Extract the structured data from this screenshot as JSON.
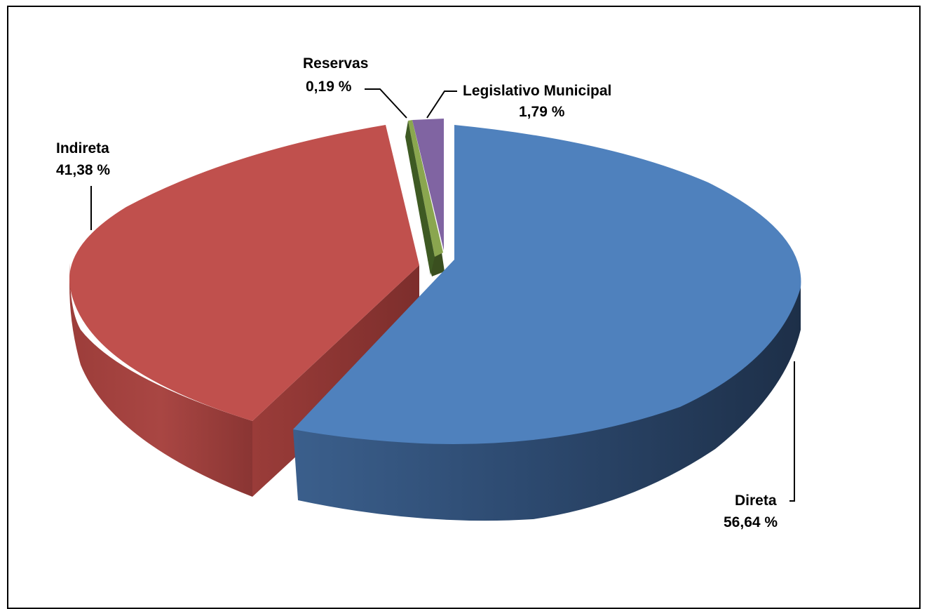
{
  "chart_data": {
    "type": "pie",
    "style": "3d-exploded",
    "categories": [
      "Direta",
      "Indireta",
      "Reservas",
      "Legislativo Municipal"
    ],
    "values": [
      56.64,
      41.38,
      0.19,
      1.79
    ],
    "unit": "%",
    "series": [
      {
        "name": "Direta",
        "value": 56.64,
        "label": "Direta",
        "value_label": "56,64 %",
        "color": "#4F81BD"
      },
      {
        "name": "Indireta",
        "value": 41.38,
        "label": "Indireta",
        "value_label": "41,38 %",
        "color": "#C0504D"
      },
      {
        "name": "Reservas",
        "value": 0.19,
        "label": "Reservas",
        "value_label": "0,19 %",
        "color": "#9BBB59"
      },
      {
        "name": "Legislativo Municipal",
        "value": 1.79,
        "label": "Legislativo Municipal",
        "value_label": "1,79 %",
        "color": "#8064A2"
      }
    ],
    "title": "",
    "legend": "none",
    "data_labels": "outside with leader lines"
  }
}
